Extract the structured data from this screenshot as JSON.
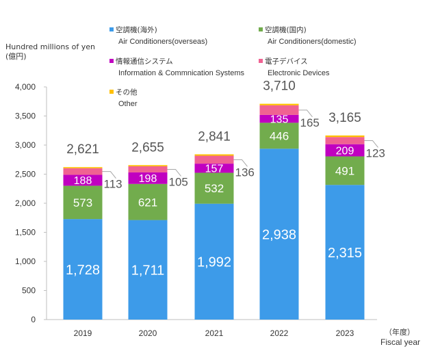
{
  "chart_data": {
    "type": "bar",
    "stacked": true,
    "ylabel_en": "Hundred millions of yen",
    "ylabel_jp": "(億円)",
    "xlabel_jp": "（年度）",
    "xlabel_en": "Fiscal year",
    "ylim": [
      0,
      4000
    ],
    "yticks": [
      0,
      500,
      1000,
      1500,
      2000,
      2500,
      3000,
      3500,
      4000
    ],
    "ytick_labels": [
      "0",
      "500",
      "1,000",
      "1,500",
      "2,000",
      "2,500",
      "3,000",
      "3,500",
      "4,000"
    ],
    "categories": [
      "2019",
      "2020",
      "2021",
      "2022",
      "2023"
    ],
    "series": [
      {
        "name": "空調機(海外)",
        "name_en": "Air Conditioners(overseas)",
        "color": "#3d9be9",
        "values": [
          1728,
          1711,
          1992,
          2938,
          2315
        ],
        "labels": [
          "1,728",
          "1,711",
          "1,992",
          "2,938",
          "2,315"
        ]
      },
      {
        "name": "空調機(国内)",
        "name_en": "Air Conditioners(domestic)",
        "color": "#72ac4d",
        "values": [
          573,
          621,
          532,
          446,
          491
        ],
        "labels": [
          "573",
          "621",
          "532",
          "446",
          "491"
        ]
      },
      {
        "name": "情報通信システム",
        "name_en": "Information & Commnication Systems",
        "color": "#c000c0",
        "values": [
          188,
          198,
          157,
          135,
          209
        ],
        "labels": [
          "188",
          "198",
          "157",
          "135",
          "209"
        ]
      },
      {
        "name": "電子デバイス",
        "name_en": "Electronic Devices",
        "color": "#f06292",
        "values": [
          113,
          105,
          136,
          165,
          123
        ],
        "labels": [
          "113",
          "105",
          "136",
          "165",
          "123"
        ]
      },
      {
        "name": "その他",
        "name_en": "Other",
        "color": "#ffc000",
        "values": [
          19,
          20,
          24,
          26,
          27
        ],
        "labels": [
          "",
          "",
          "",
          "",
          ""
        ]
      }
    ],
    "totals": [
      "2,621",
      "2,655",
      "2,841",
      "3,710",
      "3,165"
    ],
    "grid": false,
    "legend_position": "top"
  }
}
